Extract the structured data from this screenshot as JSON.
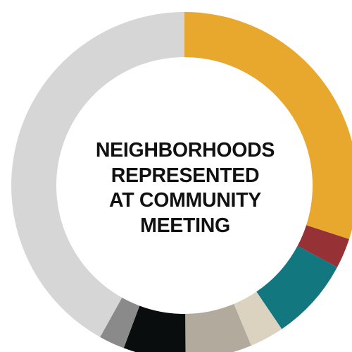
{
  "chart_data": {
    "type": "pie",
    "title_lines": [
      "NEIGHBORHOODS",
      "REPRESENTED",
      "AT COMMUNITY",
      "MEETING"
    ],
    "slices": [
      {
        "value": 30.0,
        "color": "#E8A82E"
      },
      {
        "value": 2.8,
        "color": "#963235"
      },
      {
        "value": 7.7,
        "color": "#137780"
      },
      {
        "value": 3.2,
        "color": "#DBD2C0"
      },
      {
        "value": 6.2,
        "color": "#B1AA9D"
      },
      {
        "value": 5.8,
        "color": "#0A0D0D"
      },
      {
        "value": 2.4,
        "color": "#8A8A8A"
      },
      {
        "value": 41.9,
        "color": "#D6D6D6"
      }
    ],
    "chart_style": "donut",
    "start_angle": "top (12 o'clock), clockwise",
    "legend": "none"
  }
}
